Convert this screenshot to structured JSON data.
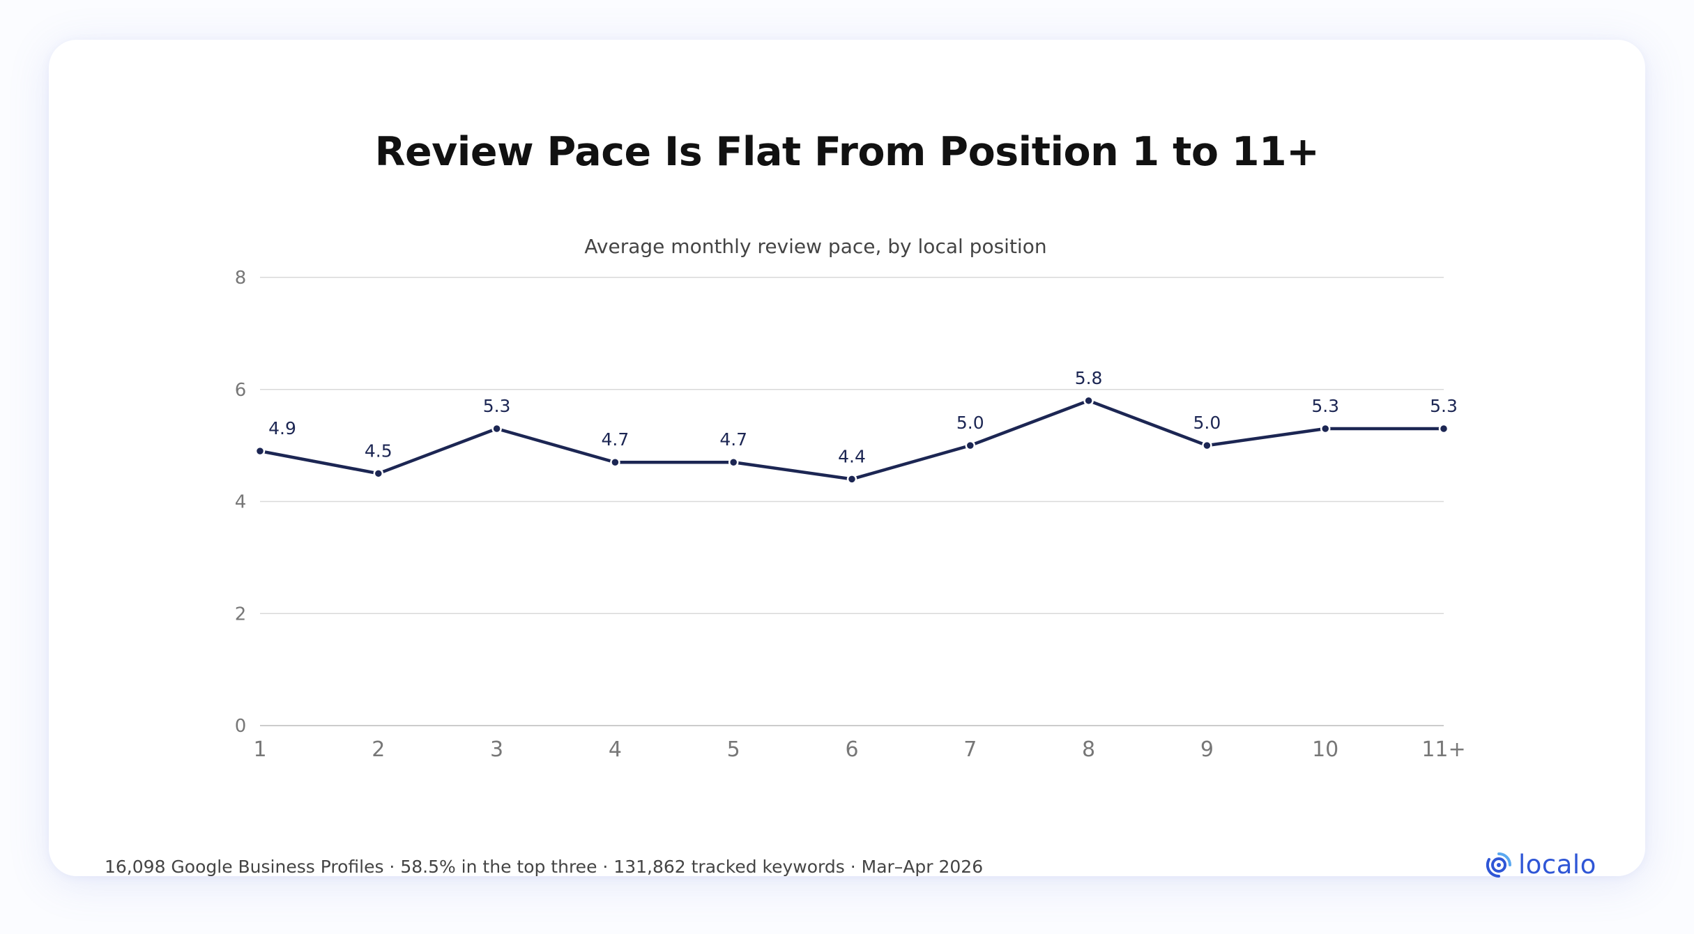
{
  "header": {
    "title": "Review Pace Is Flat From Position 1 to 11+",
    "subtitle": "Average monthly review pace, by local position"
  },
  "footer": {
    "note": "16,098 Google Business Profiles · 58.5% in the top three · 131,862 tracked keywords · Mar–Apr 2026"
  },
  "brand": {
    "name": "localo",
    "color": "#2f56d6",
    "icon": "localo-pin-icon"
  },
  "colors": {
    "line": "#1c2653",
    "grid": "#d9d9d9",
    "tick": "#777777",
    "label": "#1c2653"
  },
  "chart_data": {
    "type": "line",
    "title": "Review Pace Is Flat From Position 1 to 11+",
    "subtitle": "Average monthly review pace, by local position",
    "xlabel": "",
    "ylabel": "",
    "categories": [
      "1",
      "2",
      "3",
      "4",
      "5",
      "6",
      "7",
      "8",
      "9",
      "10",
      "11+"
    ],
    "values": [
      4.9,
      4.5,
      5.3,
      4.7,
      4.7,
      4.4,
      5.0,
      5.8,
      5.0,
      5.3,
      5.3
    ],
    "data_labels": [
      "4.9",
      "4.5",
      "5.3",
      "4.7",
      "4.7",
      "4.4",
      "5.0",
      "5.8",
      "5.0",
      "5.3",
      "5.3"
    ],
    "yticks": [
      "0",
      "2",
      "4",
      "6",
      "8"
    ],
    "ylim": [
      0,
      8
    ],
    "grid": true,
    "legend": "none"
  }
}
